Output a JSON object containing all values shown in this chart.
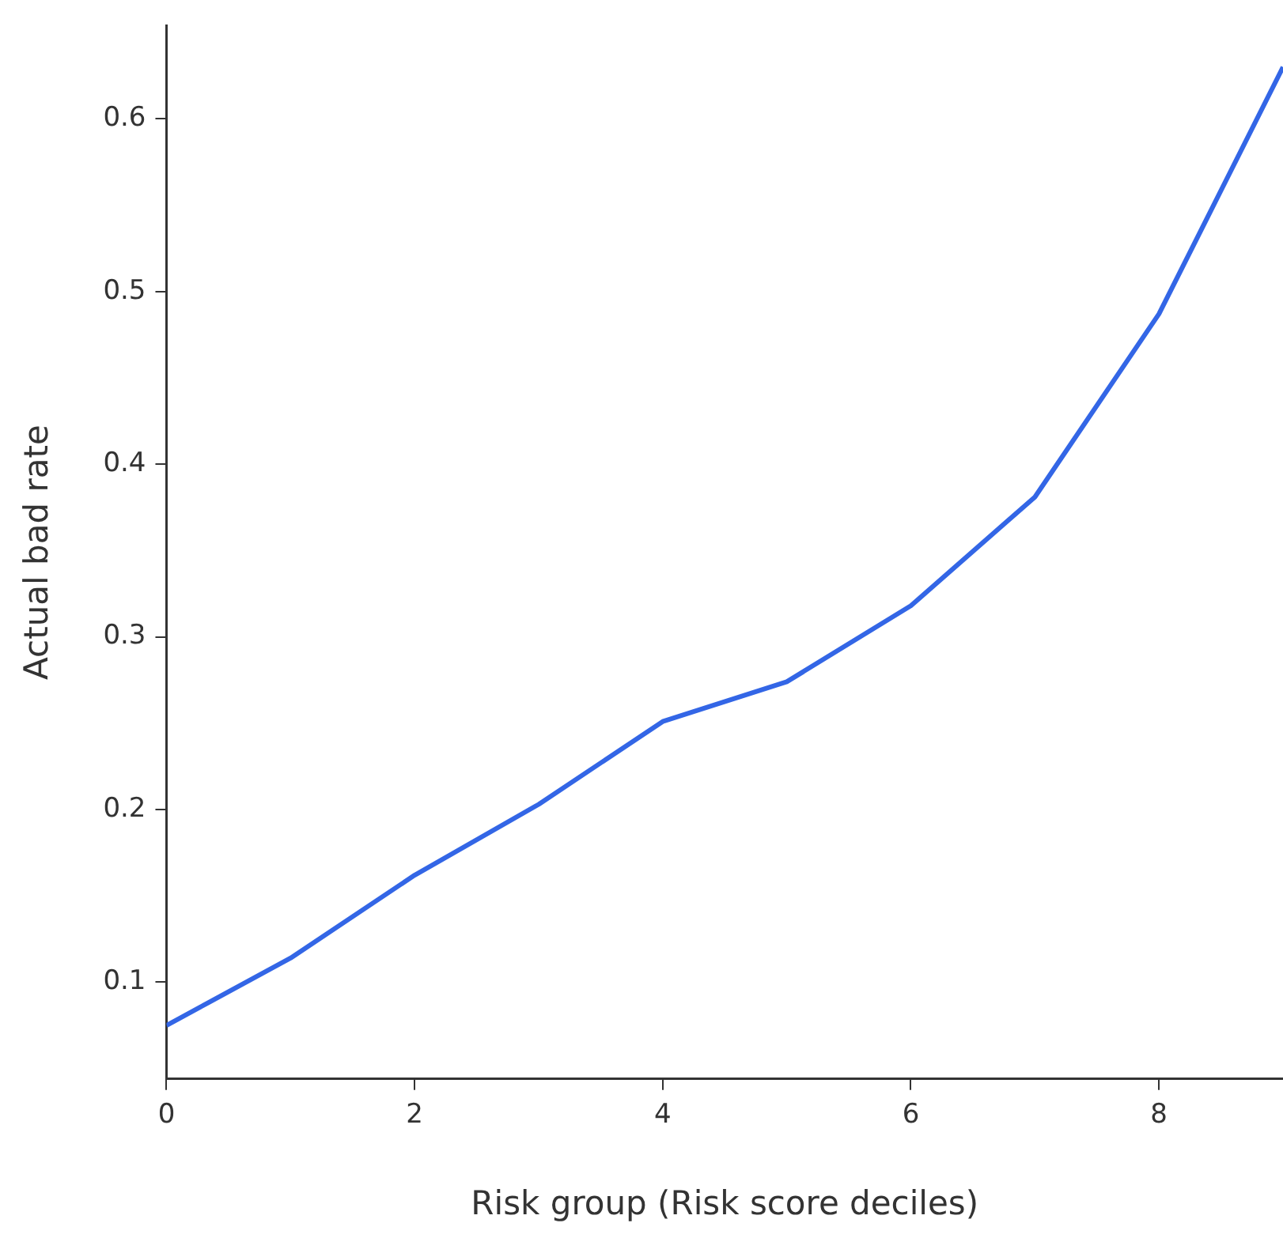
{
  "chart_data": {
    "type": "line",
    "xlabel": "Risk group (Risk score deciles)",
    "ylabel": "Actual bad rate",
    "x": [
      0,
      1,
      2,
      3,
      4,
      5,
      6,
      7,
      8,
      9
    ],
    "series": [
      {
        "color": "#3366e6",
        "values": [
          0.075,
          0.114,
          0.162,
          0.203,
          0.251,
          0.274,
          0.318,
          0.381,
          0.487,
          0.63
        ]
      }
    ],
    "xlim": [
      0,
      9
    ],
    "xticks": [
      0,
      2,
      4,
      6,
      8
    ],
    "ylim": [
      0.044,
      0.654
    ],
    "yticks": [
      0.1,
      0.2,
      0.3,
      0.4,
      0.5,
      0.6
    ],
    "grid": false,
    "legend": false,
    "marker": "none",
    "line_style": "solid"
  }
}
